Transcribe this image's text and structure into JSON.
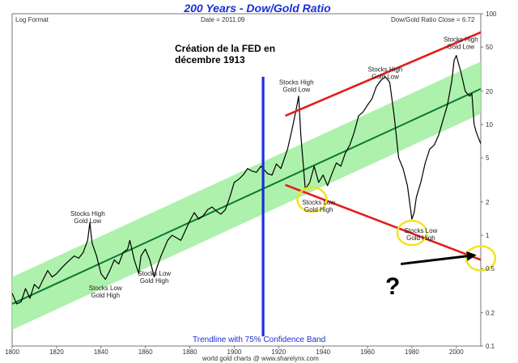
{
  "chart_data": {
    "type": "line",
    "title": "200 Years - Dow/Gold Ratio",
    "header_left": "Log Format",
    "header_date": "Date = 2011.09",
    "header_right": "Dow/Gold Ratio Close = 6.72",
    "footer_band": "Trendline with 75% Confidence Band",
    "footer_source": "world gold charts @ www.sharelynx.com",
    "annotation_main": [
      "Création de la FED en",
      "décembre 1913"
    ],
    "question_mark": "?",
    "y_scale": "log",
    "xlim": [
      1800,
      2011
    ],
    "ylim": [
      0.1,
      100
    ],
    "x_ticks": [
      1800,
      1820,
      1840,
      1860,
      1880,
      1900,
      1920,
      1940,
      1960,
      1980,
      2000
    ],
    "x_tick_labels": [
      "1800",
      "1820",
      "1840",
      "1860",
      "1880",
      "1900",
      "1920",
      "1940",
      "1960",
      "1980",
      "2000"
    ],
    "y_ticks": [
      0.1,
      0.2,
      0.5,
      1,
      2,
      5,
      10,
      20,
      50,
      100
    ],
    "y_tick_labels": [
      "0.1",
      "0.2",
      "0.5",
      "1",
      "2",
      "5",
      "10",
      "20",
      "50",
      "100"
    ],
    "series": [
      {
        "color": "#000000",
        "x": [
          1800,
          1802,
          1804,
          1806,
          1808,
          1810,
          1812,
          1814,
          1816,
          1818,
          1820,
          1822,
          1824,
          1826,
          1828,
          1830,
          1832,
          1834,
          1835,
          1836,
          1838,
          1840,
          1842,
          1844,
          1846,
          1848,
          1850,
          1852,
          1853,
          1855,
          1857,
          1858,
          1860,
          1862,
          1864,
          1865,
          1867,
          1870,
          1872,
          1874,
          1876,
          1878,
          1880,
          1882,
          1884,
          1886,
          1888,
          1890,
          1892,
          1894,
          1896,
          1898,
          1900,
          1902,
          1904,
          1906,
          1908,
          1910,
          1912,
          1913,
          1915,
          1917,
          1919,
          1921,
          1924,
          1926,
          1928,
          1929,
          1930,
          1932,
          1934,
          1936,
          1938,
          1940,
          1942,
          1944,
          1946,
          1948,
          1950,
          1952,
          1954,
          1956,
          1958,
          1960,
          1962,
          1964,
          1966,
          1968,
          1970,
          1972,
          1974,
          1976,
          1978,
          1980,
          1981,
          1982,
          1984,
          1986,
          1988,
          1990,
          1992,
          1994,
          1996,
          1998,
          1999,
          2000,
          2002,
          2004,
          2006,
          2007,
          2008,
          2009,
          2010,
          2011
        ],
        "values": [
          0.3,
          0.24,
          0.25,
          0.33,
          0.27,
          0.36,
          0.33,
          0.4,
          0.48,
          0.42,
          0.45,
          0.5,
          0.55,
          0.6,
          0.65,
          0.62,
          0.7,
          0.9,
          1.3,
          0.85,
          0.65,
          0.45,
          0.4,
          0.48,
          0.6,
          0.55,
          0.7,
          0.75,
          0.9,
          0.6,
          0.45,
          0.65,
          0.75,
          0.6,
          0.42,
          0.5,
          0.65,
          0.9,
          1.0,
          0.95,
          0.9,
          1.1,
          1.35,
          1.6,
          1.4,
          1.5,
          1.7,
          1.8,
          1.65,
          1.55,
          1.7,
          2.2,
          3.0,
          3.2,
          3.5,
          4.0,
          3.8,
          3.7,
          4.2,
          4.0,
          3.6,
          3.5,
          4.4,
          4.0,
          6.0,
          9.0,
          14.0,
          18.0,
          8.0,
          2.6,
          3.0,
          4.2,
          3.0,
          3.5,
          2.8,
          3.6,
          4.5,
          4.2,
          5.5,
          6.5,
          8.5,
          12.0,
          13.0,
          15.0,
          17.0,
          22.0,
          25.0,
          27.0,
          24.0,
          12.0,
          5.0,
          4.0,
          2.8,
          1.4,
          1.6,
          2.2,
          3.0,
          4.5,
          6.0,
          6.5,
          8.0,
          11.0,
          15.0,
          25.0,
          38.0,
          42.0,
          30.0,
          20.0,
          18.0,
          19.0,
          10.0,
          8.5,
          7.5,
          6.72
        ]
      }
    ],
    "trendline": {
      "color": "#0b7a2e",
      "x": [
        1800,
        2011
      ],
      "y": [
        0.24,
        21.0
      ]
    },
    "confidence_band": {
      "label": "75%",
      "color": "#a0ee9e",
      "x": [
        1800,
        2011
      ],
      "lower": [
        0.14,
        12.5
      ],
      "upper": [
        0.42,
        37.0
      ]
    },
    "red_lines": [
      {
        "color": "#e51c1c",
        "x": [
          1923,
          2011
        ],
        "y": [
          12.0,
          68.0
        ]
      },
      {
        "color": "#e51c1c",
        "x": [
          1923,
          2011
        ],
        "y": [
          2.85,
          0.6
        ]
      }
    ],
    "fed_line": {
      "color": "#1a2fd6",
      "x": 1913
    },
    "annotations": [
      {
        "x": 1834,
        "y": 1.5,
        "lines": [
          "Stocks High",
          "Gold Low"
        ]
      },
      {
        "x": 1842,
        "y": 0.32,
        "lines": [
          "Stocks Low",
          "Gold High"
        ]
      },
      {
        "x": 1864,
        "y": 0.43,
        "lines": [
          "Stocks Low",
          "Gold High"
        ]
      },
      {
        "x": 1928,
        "y": 23.0,
        "lines": [
          "Stocks High",
          "Gold Low"
        ]
      },
      {
        "x": 1938,
        "y": 1.9,
        "lines": [
          "Stocks Low",
          "Gold High"
        ]
      },
      {
        "x": 1968,
        "y": 30.0,
        "lines": [
          "Stocks High",
          "Gold Low"
        ]
      },
      {
        "x": 1984,
        "y": 1.05,
        "lines": [
          "Stocks Low",
          "Gold High"
        ]
      },
      {
        "x": 2002,
        "y": 56.0,
        "lines": [
          "Stocks High",
          "Gold Low"
        ]
      }
    ],
    "highlight_circles": [
      {
        "x": 1935,
        "y": 2.1
      },
      {
        "x": 1980,
        "y": 1.05
      },
      {
        "x": 2011,
        "y": 0.62
      }
    ],
    "arrow": {
      "color": "#000000",
      "from": [
        1975,
        0.55
      ],
      "to": [
        2008,
        0.66
      ]
    }
  }
}
